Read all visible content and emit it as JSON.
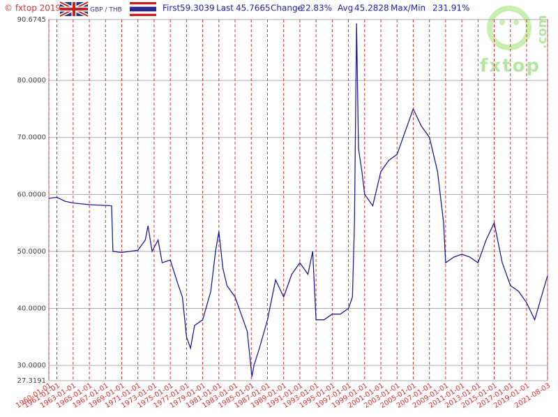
{
  "header": {
    "copyright": "© fxtop 2019",
    "pair": "GBP / THB",
    "stats": [
      [
        "First",
        "59.3039"
      ],
      [
        "Last",
        "45.7665"
      ],
      [
        "Change",
        "-22.83%"
      ],
      [
        "Avg",
        "45.2828"
      ],
      [
        "Max/Min",
        "231.91%"
      ]
    ]
  },
  "logo": {
    "name": "fxtop",
    "suffix": ".com"
  },
  "chart_data": {
    "type": "line",
    "color": "#1c1c9c",
    "grid": true,
    "x": [
      "1960-01-01",
      "1961-01-01",
      "1962-01-01",
      "1963-01-01",
      "1965-01-01",
      "1967-10-01",
      "1967-12-01",
      "1969-01-01",
      "1971-01-01",
      "1971-12-01",
      "1972-04-01",
      "1972-10-01",
      "1973-07-01",
      "1974-01-01",
      "1975-01-01",
      "1976-01-01",
      "1976-07-01",
      "1977-01-01",
      "1977-07-01",
      "1978-01-01",
      "1979-01-01",
      "1980-01-01",
      "1980-08-01",
      "1981-01-01",
      "1981-07-01",
      "1982-01-01",
      "1983-01-01",
      "1984-01-01",
      "1984-07-01",
      "1985-02-01",
      "1985-05-01",
      "1986-01-01",
      "1987-01-01",
      "1988-01-01",
      "1989-01-01",
      "1990-01-01",
      "1991-01-01",
      "1992-01-01",
      "1992-08-01",
      "1993-01-01",
      "1994-01-01",
      "1995-01-01",
      "1996-01-01",
      "1997-01-01",
      "1997-07-01",
      "1997-10-01",
      "1998-01-01",
      "1998-04-01",
      "1998-09-01",
      "1999-01-01",
      "2000-01-01",
      "2001-01-01",
      "2002-01-01",
      "2003-01-01",
      "2004-01-01",
      "2005-01-01",
      "2006-01-01",
      "2007-01-01",
      "2008-01-01",
      "2008-10-01",
      "2009-01-01",
      "2010-01-01",
      "2011-01-01",
      "2012-01-01",
      "2013-01-01",
      "2014-01-01",
      "2015-01-01",
      "2016-01-01",
      "2017-01-01",
      "2018-01-01",
      "2019-01-01",
      "2020-01-01",
      "2021-08-01"
    ],
    "values": [
      59.3,
      59.5,
      58.8,
      58.5,
      58.2,
      58.0,
      50.0,
      49.8,
      50.2,
      52,
      54.5,
      50,
      52,
      48,
      48.5,
      44,
      42,
      35,
      33,
      37,
      38,
      43,
      50,
      53.5,
      47,
      44,
      42,
      38,
      36,
      28,
      30,
      33,
      38,
      45,
      42,
      46,
      48,
      46,
      50,
      38,
      38,
      39,
      39,
      40,
      42,
      55,
      90,
      68,
      64,
      60,
      58,
      64,
      66,
      67,
      71,
      75,
      72,
      70,
      64,
      55,
      48,
      49,
      49.5,
      49,
      48,
      52,
      55,
      48,
      44,
      43,
      41,
      38,
      45.7
    ],
    "xlim": [
      "1960-01-01",
      "2021-08-03"
    ],
    "xticks": [
      "1960-01-01",
      "1961-01-01",
      "1963-01-01",
      "1965-01-01",
      "1967-01-01",
      "1969-01-01",
      "1971-01-01",
      "1973-01-01",
      "1975-01-01",
      "1977-01-01",
      "1979-01-01",
      "1981-01-01",
      "1983-01-01",
      "1985-01-01",
      "1987-01-01",
      "1989-01-01",
      "1991-01-01",
      "1993-01-01",
      "1995-01-01",
      "1997-01-01",
      "1999-01-01",
      "2001-01-01",
      "2003-01-01",
      "2005-01-01",
      "2007-01-01",
      "2009-01-01",
      "2011-01-01",
      "2013-01-01",
      "2015-01-01",
      "2017-01-01",
      "2019-01-01",
      "2021-08-03"
    ],
    "ylim": [
      27.3191,
      90.6745
    ],
    "yticks": [
      27.3191,
      {
        "value": 30,
        "label": "30.0000"
      },
      {
        "value": 40,
        "label": "40.0000"
      },
      {
        "value": 50,
        "label": "50.0000"
      },
      {
        "value": 60,
        "label": "60.0000"
      },
      {
        "value": 70,
        "label": "70.0000"
      },
      {
        "value": 80,
        "label": "80.0000"
      },
      90.6745
    ]
  }
}
